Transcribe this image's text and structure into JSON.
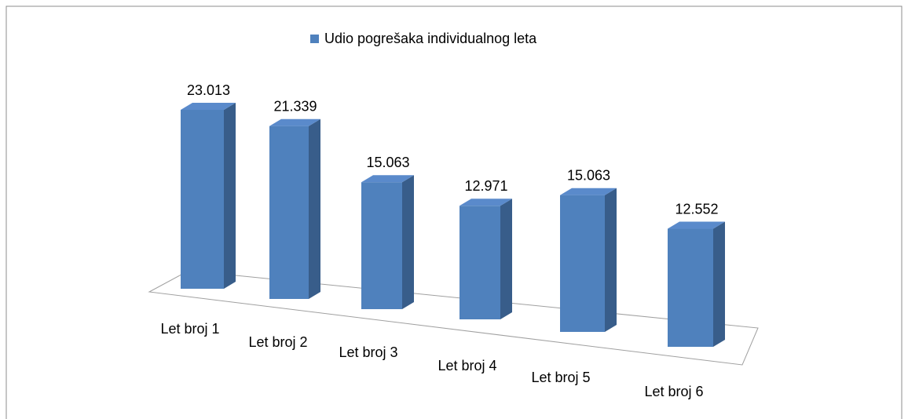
{
  "chart_data": {
    "type": "bar3d",
    "categories": [
      "Let broj 1",
      "Let broj 2",
      "Let broj 3",
      "Let broj 4",
      "Let broj 5",
      "Let broj 6"
    ],
    "series": [
      {
        "name": "Udio pogrešaka individualnog leta",
        "color": "#4f81bd",
        "values": [
          23.013,
          21.339,
          15.063,
          12.971,
          15.063,
          12.552
        ]
      }
    ]
  }
}
